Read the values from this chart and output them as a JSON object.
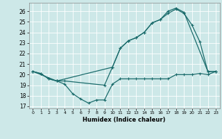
{
  "xlabel": "Humidex (Indice chaleur)",
  "bg_color": "#cde8e8",
  "line_color": "#1a6b6b",
  "grid_color": "#b8d8d8",
  "xlim": [
    -0.5,
    23.5
  ],
  "ylim": [
    16.8,
    26.8
  ],
  "xticks": [
    0,
    1,
    2,
    3,
    4,
    5,
    6,
    7,
    8,
    9,
    10,
    11,
    12,
    13,
    14,
    15,
    16,
    17,
    18,
    19,
    20,
    21,
    22,
    23
  ],
  "yticks": [
    17,
    18,
    19,
    20,
    21,
    22,
    23,
    24,
    25,
    26
  ],
  "series1_x": [
    0,
    1,
    2,
    3,
    4,
    5,
    6,
    7,
    8,
    9,
    10,
    11,
    12,
    13,
    14,
    15,
    16,
    17,
    18,
    19,
    20,
    21,
    22,
    23
  ],
  "series1_y": [
    20.3,
    20.1,
    19.6,
    19.4,
    19.1,
    18.2,
    17.7,
    17.3,
    17.6,
    17.6,
    19.1,
    19.6,
    19.6,
    19.6,
    19.6,
    19.6,
    19.6,
    19.6,
    20.0,
    20.0,
    20.0,
    20.1,
    20.0,
    20.3
  ],
  "series2_x": [
    0,
    1,
    2,
    3,
    4,
    9,
    10,
    11,
    12,
    13,
    14,
    15,
    16,
    17,
    18,
    19,
    20,
    21,
    22,
    23
  ],
  "series2_y": [
    20.3,
    20.1,
    19.6,
    19.4,
    19.4,
    19.0,
    20.7,
    22.5,
    23.2,
    23.5,
    24.0,
    24.9,
    25.2,
    25.8,
    26.2,
    25.8,
    24.7,
    23.1,
    20.3,
    20.3
  ],
  "series3_x": [
    0,
    3,
    10,
    11,
    12,
    13,
    14,
    15,
    16,
    17,
    18,
    19,
    22,
    23
  ],
  "series3_y": [
    20.3,
    19.4,
    20.7,
    22.5,
    23.2,
    23.5,
    24.0,
    24.9,
    25.2,
    26.0,
    26.3,
    25.9,
    20.3,
    20.3
  ]
}
